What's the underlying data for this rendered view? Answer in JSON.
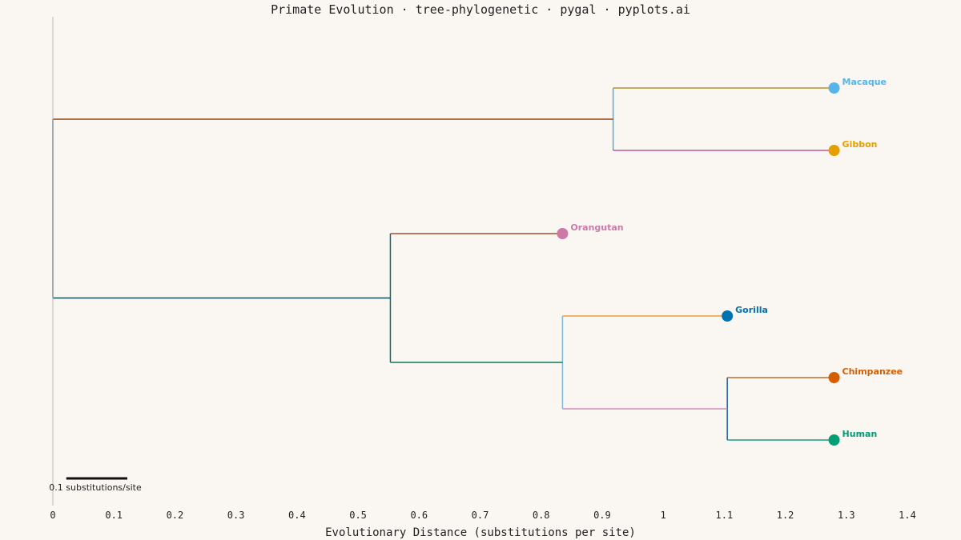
{
  "chart_data": {
    "type": "tree-phylogenetic",
    "title": "Primate Evolution · tree-phylogenetic · pygal · pyplots.ai",
    "xlabel": "Evolutionary Distance (substitutions per site)",
    "xlim": [
      0,
      1.4
    ],
    "x_ticks": [
      "0",
      "0.1",
      "0.2",
      "0.3",
      "0.4",
      "0.5",
      "0.6",
      "0.7",
      "0.8",
      "0.9",
      "1",
      "1.1",
      "1.2",
      "1.3",
      "1.4"
    ],
    "x_tick_values": [
      0,
      0.1,
      0.2,
      0.3,
      0.4,
      0.5,
      0.6,
      0.7,
      0.8,
      0.9,
      1.0,
      1.1,
      1.2,
      1.3,
      1.4
    ],
    "scale_bar": {
      "length": 0.1,
      "label": "0.1 substitutions/site"
    },
    "leaves": [
      {
        "name": "Macaque",
        "x": 1.28,
        "color": "#56b4e9"
      },
      {
        "name": "Gibbon",
        "x": 1.28,
        "color": "#e69f00"
      },
      {
        "name": "Orangutan",
        "x": 0.835,
        "color": "#cc79a7"
      },
      {
        "name": "Gorilla",
        "x": 1.105,
        "color": "#0072b2"
      },
      {
        "name": "Chimpanzee",
        "x": 1.28,
        "color": "#d55e00"
      },
      {
        "name": "Human",
        "x": 1.28,
        "color": "#009e73"
      }
    ],
    "internal_nodes": [
      {
        "id": "root",
        "x": 0.0
      },
      {
        "id": "macaque_gibbon",
        "x": 0.918
      },
      {
        "id": "great_apes",
        "x": 0.553
      },
      {
        "id": "african_apes",
        "x": 0.835
      },
      {
        "id": "chimp_human",
        "x": 1.105
      }
    ],
    "edges": [
      {
        "parent": "root",
        "child": "macaque_gibbon",
        "color": "#8b4513"
      },
      {
        "parent": "root",
        "child": "great_apes",
        "color": "#0f4d5c"
      },
      {
        "parent": "macaque_gibbon",
        "child": "Macaque",
        "color": "#b8902a"
      },
      {
        "parent": "macaque_gibbon",
        "child": "Gibbon",
        "color": "#c05a95"
      },
      {
        "parent": "great_apes",
        "child": "Orangutan",
        "color": "#a0522d"
      },
      {
        "parent": "great_apes",
        "child": "african_apes",
        "color": "#0e7a5c"
      },
      {
        "parent": "african_apes",
        "child": "Gorilla",
        "color": "#e8a33a"
      },
      {
        "parent": "african_apes",
        "child": "chimp_human",
        "color": "#d08ab8"
      },
      {
        "parent": "chimp_human",
        "child": "Chimpanzee",
        "color": "#c06a2a"
      },
      {
        "parent": "chimp_human",
        "child": "Human",
        "color": "#1a9a86"
      }
    ],
    "vertical_colors": {
      "root": "#0f4d5c",
      "macaque_gibbon": "#56a8d8",
      "great_apes": "#0e6b6b",
      "african_apes": "#7ab8e0",
      "chimp_human": "#1f5fa0"
    },
    "grid": false,
    "legend": "none"
  }
}
